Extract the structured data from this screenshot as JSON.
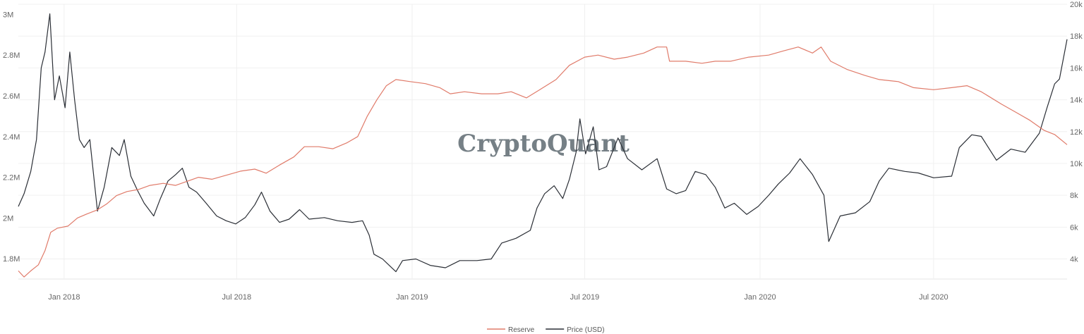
{
  "watermark": "CryptoQuant",
  "chart_data": {
    "type": "line",
    "title": "",
    "xlabel": "",
    "ylabel": "",
    "x_range": [
      "2017-11-14",
      "2020-11-18"
    ],
    "x_ticks": [
      {
        "date": "2018-01-01",
        "label": "Jan 2018"
      },
      {
        "date": "2018-07-01",
        "label": "Jul 2018"
      },
      {
        "date": "2019-01-01",
        "label": "Jan 2019"
      },
      {
        "date": "2019-07-01",
        "label": "Jul 2019"
      },
      {
        "date": "2020-01-01",
        "label": "Jan 2020"
      },
      {
        "date": "2020-07-01",
        "label": "Jul 2020"
      }
    ],
    "y_left": {
      "range": [
        1700000,
        3050000
      ],
      "ticks": [
        {
          "value": 1800000,
          "label": "1.8M"
        },
        {
          "value": 2000000,
          "label": "2M"
        },
        {
          "value": 2200000,
          "label": "2.2M"
        },
        {
          "value": 2400000,
          "label": "2.4M"
        },
        {
          "value": 2600000,
          "label": "2.6M"
        },
        {
          "value": 2800000,
          "label": "2.8M"
        },
        {
          "value": 3000000,
          "label": "3M"
        }
      ]
    },
    "y_right": {
      "range": [
        2740,
        20000
      ],
      "ticks": [
        {
          "value": 4000,
          "label": "4k"
        },
        {
          "value": 6000,
          "label": "6k"
        },
        {
          "value": 8000,
          "label": "8k"
        },
        {
          "value": 10000,
          "label": "10k"
        },
        {
          "value": 12000,
          "label": "12k"
        },
        {
          "value": 14000,
          "label": "14k"
        },
        {
          "value": 16000,
          "label": "16k"
        },
        {
          "value": 18000,
          "label": "18k"
        },
        {
          "value": 20000,
          "label": "20k"
        }
      ]
    },
    "grid": true,
    "legend_position": "bottom-center",
    "series": [
      {
        "name": "Reserve",
        "axis": "left",
        "color": "#e07b6a",
        "points": [
          [
            "2017-11-14",
            1740000
          ],
          [
            "2017-11-20",
            1710000
          ],
          [
            "2017-11-27",
            1740000
          ],
          [
            "2017-12-05",
            1770000
          ],
          [
            "2017-12-12",
            1840000
          ],
          [
            "2017-12-18",
            1930000
          ],
          [
            "2017-12-25",
            1950000
          ],
          [
            "2018-01-05",
            1960000
          ],
          [
            "2018-01-15",
            2000000
          ],
          [
            "2018-01-25",
            2020000
          ],
          [
            "2018-02-05",
            2040000
          ],
          [
            "2018-02-15",
            2070000
          ],
          [
            "2018-02-25",
            2110000
          ],
          [
            "2018-03-08",
            2130000
          ],
          [
            "2018-03-20",
            2140000
          ],
          [
            "2018-04-01",
            2160000
          ],
          [
            "2018-04-15",
            2170000
          ],
          [
            "2018-04-28",
            2160000
          ],
          [
            "2018-05-10",
            2180000
          ],
          [
            "2018-05-22",
            2200000
          ],
          [
            "2018-06-05",
            2190000
          ],
          [
            "2018-06-20",
            2210000
          ],
          [
            "2018-07-05",
            2230000
          ],
          [
            "2018-07-20",
            2240000
          ],
          [
            "2018-08-01",
            2220000
          ],
          [
            "2018-08-15",
            2260000
          ],
          [
            "2018-08-30",
            2300000
          ],
          [
            "2018-09-10",
            2350000
          ],
          [
            "2018-09-25",
            2350000
          ],
          [
            "2018-10-10",
            2340000
          ],
          [
            "2018-10-25",
            2370000
          ],
          [
            "2018-11-05",
            2400000
          ],
          [
            "2018-11-15",
            2500000
          ],
          [
            "2018-11-25",
            2580000
          ],
          [
            "2018-12-05",
            2650000
          ],
          [
            "2018-12-15",
            2680000
          ],
          [
            "2018-12-30",
            2670000
          ],
          [
            "2019-01-15",
            2660000
          ],
          [
            "2019-01-30",
            2640000
          ],
          [
            "2019-02-10",
            2610000
          ],
          [
            "2019-02-25",
            2620000
          ],
          [
            "2019-03-15",
            2610000
          ],
          [
            "2019-04-01",
            2610000
          ],
          [
            "2019-04-15",
            2620000
          ],
          [
            "2019-05-01",
            2590000
          ],
          [
            "2019-05-15",
            2630000
          ],
          [
            "2019-06-01",
            2680000
          ],
          [
            "2019-06-15",
            2750000
          ],
          [
            "2019-07-01",
            2790000
          ],
          [
            "2019-07-15",
            2800000
          ],
          [
            "2019-08-01",
            2780000
          ],
          [
            "2019-08-15",
            2790000
          ],
          [
            "2019-09-01",
            2810000
          ],
          [
            "2019-09-15",
            2840000
          ],
          [
            "2019-09-25",
            2840000
          ],
          [
            "2019-09-28",
            2770000
          ],
          [
            "2019-10-15",
            2770000
          ],
          [
            "2019-11-01",
            2760000
          ],
          [
            "2019-11-15",
            2770000
          ],
          [
            "2019-12-01",
            2770000
          ],
          [
            "2019-12-20",
            2790000
          ],
          [
            "2020-01-10",
            2800000
          ],
          [
            "2020-01-25",
            2820000
          ],
          [
            "2020-02-10",
            2840000
          ],
          [
            "2020-02-25",
            2810000
          ],
          [
            "2020-03-05",
            2840000
          ],
          [
            "2020-03-15",
            2770000
          ],
          [
            "2020-04-01",
            2730000
          ],
          [
            "2020-04-20",
            2700000
          ],
          [
            "2020-05-05",
            2680000
          ],
          [
            "2020-05-25",
            2670000
          ],
          [
            "2020-06-10",
            2640000
          ],
          [
            "2020-07-01",
            2630000
          ],
          [
            "2020-07-20",
            2640000
          ],
          [
            "2020-08-05",
            2650000
          ],
          [
            "2020-08-20",
            2620000
          ],
          [
            "2020-09-10",
            2560000
          ],
          [
            "2020-09-25",
            2520000
          ],
          [
            "2020-10-10",
            2480000
          ],
          [
            "2020-10-25",
            2430000
          ],
          [
            "2020-11-05",
            2410000
          ],
          [
            "2020-11-18",
            2360000
          ]
        ]
      },
      {
        "name": "Price (USD)",
        "axis": "right",
        "color": "#2b2f36",
        "points": [
          [
            "2017-11-14",
            7300
          ],
          [
            "2017-11-20",
            8100
          ],
          [
            "2017-11-27",
            9500
          ],
          [
            "2017-12-03",
            11500
          ],
          [
            "2017-12-08",
            16000
          ],
          [
            "2017-12-12",
            17000
          ],
          [
            "2017-12-17",
            19400
          ],
          [
            "2017-12-22",
            14000
          ],
          [
            "2017-12-27",
            15500
          ],
          [
            "2018-01-02",
            13500
          ],
          [
            "2018-01-07",
            17000
          ],
          [
            "2018-01-12",
            14000
          ],
          [
            "2018-01-17",
            11500
          ],
          [
            "2018-01-22",
            11000
          ],
          [
            "2018-01-28",
            11500
          ],
          [
            "2018-02-05",
            7000
          ],
          [
            "2018-02-12",
            8500
          ],
          [
            "2018-02-20",
            11000
          ],
          [
            "2018-02-28",
            10500
          ],
          [
            "2018-03-05",
            11500
          ],
          [
            "2018-03-12",
            9200
          ],
          [
            "2018-03-19",
            8300
          ],
          [
            "2018-03-26",
            7500
          ],
          [
            "2018-04-05",
            6700
          ],
          [
            "2018-04-12",
            7800
          ],
          [
            "2018-04-20",
            8900
          ],
          [
            "2018-04-28",
            9300
          ],
          [
            "2018-05-05",
            9700
          ],
          [
            "2018-05-12",
            8500
          ],
          [
            "2018-05-20",
            8200
          ],
          [
            "2018-05-30",
            7500
          ],
          [
            "2018-06-10",
            6700
          ],
          [
            "2018-06-20",
            6400
          ],
          [
            "2018-06-30",
            6200
          ],
          [
            "2018-07-10",
            6600
          ],
          [
            "2018-07-20",
            7400
          ],
          [
            "2018-07-27",
            8200
          ],
          [
            "2018-08-05",
            7000
          ],
          [
            "2018-08-15",
            6300
          ],
          [
            "2018-08-25",
            6500
          ],
          [
            "2018-09-05",
            7100
          ],
          [
            "2018-09-15",
            6500
          ],
          [
            "2018-10-01",
            6600
          ],
          [
            "2018-10-15",
            6400
          ],
          [
            "2018-10-30",
            6300
          ],
          [
            "2018-11-10",
            6400
          ],
          [
            "2018-11-17",
            5500
          ],
          [
            "2018-11-22",
            4300
          ],
          [
            "2018-12-01",
            4000
          ],
          [
            "2018-12-08",
            3600
          ],
          [
            "2018-12-15",
            3200
          ],
          [
            "2018-12-22",
            3900
          ],
          [
            "2019-01-05",
            4000
          ],
          [
            "2019-01-20",
            3600
          ],
          [
            "2019-02-05",
            3450
          ],
          [
            "2019-02-20",
            3900
          ],
          [
            "2019-03-10",
            3900
          ],
          [
            "2019-03-25",
            4000
          ],
          [
            "2019-04-05",
            5000
          ],
          [
            "2019-04-20",
            5300
          ],
          [
            "2019-05-05",
            5800
          ],
          [
            "2019-05-12",
            7200
          ],
          [
            "2019-05-20",
            8100
          ],
          [
            "2019-05-30",
            8600
          ],
          [
            "2019-06-08",
            7800
          ],
          [
            "2019-06-15",
            9000
          ],
          [
            "2019-06-22",
            10700
          ],
          [
            "2019-06-26",
            12800
          ],
          [
            "2019-07-02",
            10600
          ],
          [
            "2019-07-10",
            12300
          ],
          [
            "2019-07-16",
            9600
          ],
          [
            "2019-07-24",
            9800
          ],
          [
            "2019-08-05",
            11600
          ],
          [
            "2019-08-15",
            10300
          ],
          [
            "2019-08-30",
            9600
          ],
          [
            "2019-09-15",
            10300
          ],
          [
            "2019-09-25",
            8400
          ],
          [
            "2019-10-05",
            8100
          ],
          [
            "2019-10-15",
            8300
          ],
          [
            "2019-10-25",
            9500
          ],
          [
            "2019-11-05",
            9300
          ],
          [
            "2019-11-15",
            8500
          ],
          [
            "2019-11-25",
            7200
          ],
          [
            "2019-12-05",
            7500
          ],
          [
            "2019-12-18",
            6800
          ],
          [
            "2019-12-30",
            7300
          ],
          [
            "2020-01-10",
            8000
          ],
          [
            "2020-01-20",
            8700
          ],
          [
            "2020-02-01",
            9400
          ],
          [
            "2020-02-12",
            10300
          ],
          [
            "2020-02-25",
            9300
          ],
          [
            "2020-03-08",
            8000
          ],
          [
            "2020-03-13",
            5100
          ],
          [
            "2020-03-25",
            6700
          ],
          [
            "2020-04-10",
            6900
          ],
          [
            "2020-04-25",
            7600
          ],
          [
            "2020-05-05",
            8900
          ],
          [
            "2020-05-15",
            9700
          ],
          [
            "2020-06-01",
            9500
          ],
          [
            "2020-06-15",
            9400
          ],
          [
            "2020-07-01",
            9100
          ],
          [
            "2020-07-20",
            9200
          ],
          [
            "2020-07-28",
            11000
          ],
          [
            "2020-08-10",
            11800
          ],
          [
            "2020-08-20",
            11700
          ],
          [
            "2020-09-05",
            10200
          ],
          [
            "2020-09-20",
            10900
          ],
          [
            "2020-10-05",
            10700
          ],
          [
            "2020-10-20",
            11900
          ],
          [
            "2020-10-28",
            13500
          ],
          [
            "2020-11-05",
            15000
          ],
          [
            "2020-11-10",
            15300
          ],
          [
            "2020-11-18",
            17800
          ]
        ]
      }
    ]
  }
}
